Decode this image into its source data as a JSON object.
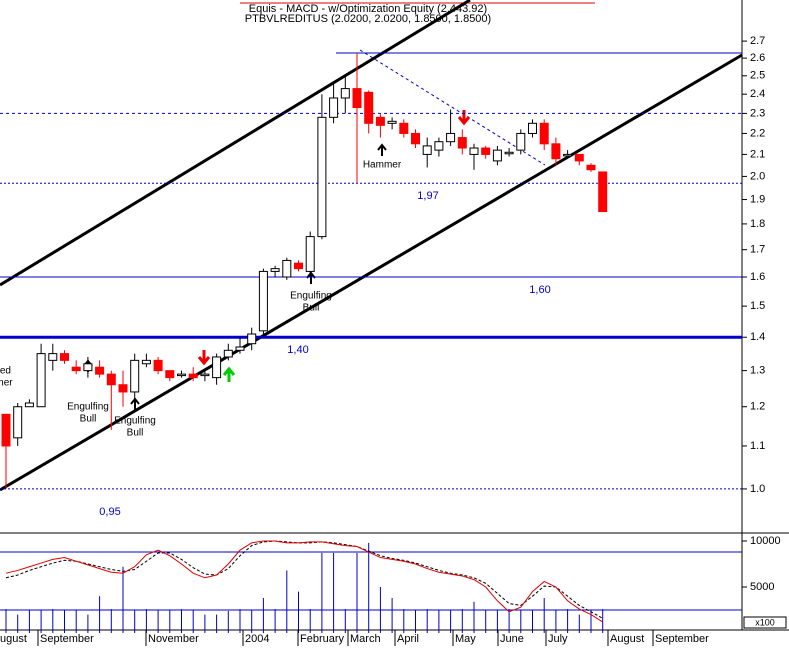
{
  "chart_data": {
    "type": "candlestick",
    "title": "Equis - MACD - w/Optimization Equity (2,443.92)",
    "subtitle": "PTBVLREDITUS (2.0200, 2.0200, 1.8500, 1.8500)",
    "log_scale": true,
    "color_up": "#ffffff",
    "color_down": "#ff0000",
    "ylim": [
      0.917,
      2.88
    ],
    "yticks": [
      {
        "value": 1.0,
        "label": "1.0"
      },
      1.1,
      1.2,
      1.3,
      1.4,
      1.5,
      1.6,
      1.7,
      1.8,
      1.9,
      {
        "value": 2.0,
        "label": "2.0"
      },
      2.1,
      2.2,
      2.3,
      2.4,
      2.5,
      2.6,
      2.7
    ],
    "open": [
      1.18,
      1.12,
      1.2,
      1.2,
      1.33,
      1.35,
      1.31,
      1.3,
      1.31,
      1.29,
      1.26,
      1.24,
      1.32,
      1.33,
      1.3,
      1.29,
      1.29,
      1.29,
      1.28,
      1.34,
      1.36,
      1.38,
      1.42,
      1.62,
      1.6,
      1.65,
      1.62,
      1.75,
      2.28,
      2.38,
      2.43,
      2.41,
      2.28,
      2.25,
      2.25,
      2.2,
      2.1,
      2.12,
      2.16,
      2.18,
      2.1,
      2.13,
      2.07,
      2.11,
      2.12,
      2.2,
      2.25,
      2.15,
      2.1,
      2.1,
      2.05,
      2.02
    ],
    "high": [
      1.18,
      1.21,
      1.22,
      1.38,
      1.38,
      1.36,
      1.33,
      1.34,
      1.33,
      1.3,
      1.3,
      1.35,
      1.35,
      1.34,
      1.3,
      1.3,
      1.31,
      1.3,
      1.35,
      1.38,
      1.4,
      1.43,
      1.63,
      1.64,
      1.67,
      1.66,
      1.77,
      2.4,
      2.47,
      2.5,
      2.63,
      2.42,
      2.3,
      2.28,
      2.27,
      2.22,
      2.18,
      2.18,
      2.32,
      2.22,
      2.15,
      2.14,
      2.14,
      2.13,
      2.22,
      2.27,
      2.27,
      2.18,
      2.12,
      2.1,
      2.06,
      2.02
    ],
    "low": [
      1.0,
      1.1,
      1.2,
      1.2,
      1.3,
      1.32,
      1.29,
      1.28,
      1.28,
      1.14,
      1.2,
      1.2,
      1.31,
      1.29,
      1.27,
      1.28,
      1.27,
      1.27,
      1.26,
      1.33,
      1.35,
      1.36,
      1.4,
      1.6,
      1.59,
      1.62,
      1.6,
      1.74,
      2.25,
      2.3,
      1.97,
      2.2,
      2.18,
      2.22,
      2.18,
      2.13,
      2.04,
      2.09,
      2.14,
      2.1,
      2.03,
      2.08,
      2.05,
      2.09,
      2.1,
      2.18,
      2.12,
      2.05,
      2.08,
      2.05,
      2.02,
      1.85
    ],
    "close": [
      1.1,
      1.2,
      1.21,
      1.35,
      1.35,
      1.33,
      1.3,
      1.32,
      1.29,
      1.26,
      1.24,
      1.33,
      1.33,
      1.3,
      1.28,
      1.29,
      1.28,
      1.29,
      1.34,
      1.36,
      1.37,
      1.41,
      1.62,
      1.63,
      1.66,
      1.63,
      1.75,
      2.28,
      2.38,
      2.43,
      2.33,
      2.25,
      2.24,
      2.26,
      2.2,
      2.15,
      2.14,
      2.16,
      2.2,
      2.13,
      2.13,
      2.1,
      2.12,
      2.11,
      2.2,
      2.25,
      2.15,
      2.08,
      2.1,
      2.07,
      2.03,
      1.85
    ],
    "levels": [
      {
        "value": 2.63,
        "style": "solid"
      },
      {
        "value": 2.3,
        "style": "dashed"
      },
      {
        "value": 1.97,
        "label": "1,97",
        "style": "dotted"
      },
      {
        "value": 1.6,
        "label": "1,60",
        "style": "solid"
      },
      {
        "value": 1.4,
        "label": "1,40",
        "style": "thick"
      },
      {
        "value": 1.0,
        "style": "dotted"
      },
      {
        "value": 0.95,
        "label": "0,95",
        "style": "none"
      }
    ],
    "annotations": [
      "Hammer",
      "Engulfing",
      "Bull",
      "Engulfing",
      "Bull",
      "Engulfing",
      "Bull",
      "ted",
      "mer"
    ],
    "months": [
      "ugust",
      "September",
      "November",
      "2004",
      "February",
      "March",
      "April",
      "May",
      "June",
      "July",
      "August",
      "September"
    ],
    "indicator": {
      "ylim": [
        0,
        10650
      ],
      "yticks": [
        5000,
        10000
      ],
      "unit_label": "x100",
      "macd": {
        "color": "#e00000",
        "values": [
          6500,
          6800,
          7200,
          7600,
          8000,
          8200,
          7800,
          7400,
          7000,
          6600,
          6500,
          7200,
          8500,
          9000,
          8400,
          7500,
          6500,
          6000,
          6300,
          7500,
          9000,
          9800,
          10000,
          10000,
          9800,
          9800,
          9900,
          9900,
          9700,
          9500,
          9400,
          8800,
          8200,
          8000,
          7800,
          7500,
          7000,
          6600,
          6400,
          6200,
          5800,
          5000,
          3500,
          2300,
          2800,
          4500,
          5600,
          5000,
          3500,
          2600,
          2000,
          1200
        ]
      },
      "signal": {
        "color": "#000000",
        "values": [
          6000,
          6300,
          6800,
          7200,
          7600,
          7900,
          7800,
          7500,
          7200,
          6900,
          6700,
          6900,
          7800,
          8700,
          8700,
          8000,
          7100,
          6400,
          6300,
          7000,
          8400,
          9500,
          9900,
          10000,
          9900,
          9800,
          9800,
          9900,
          9800,
          9600,
          9400,
          8900,
          8400,
          8100,
          7900,
          7600,
          7200,
          6800,
          6500,
          6300,
          6000,
          5400,
          4300,
          3200,
          3000,
          4000,
          5100,
          5000,
          4000,
          3000,
          2300,
          1600
        ]
      },
      "volume": {
        "color": "#0000cc",
        "values": [
          2600,
          2000,
          2500,
          2500,
          2600,
          2500,
          2500,
          2000,
          4000,
          2600,
          7200,
          2500,
          2600,
          2500,
          2500,
          2600,
          2500,
          2000,
          2000,
          2400,
          2600,
          2500,
          3800,
          2600,
          6800,
          4500,
          2600,
          8700,
          8700,
          2600,
          8700,
          9800,
          5000,
          3800,
          2600,
          2500,
          2600,
          2500,
          2500,
          2600,
          3400,
          2500,
          2500,
          2600,
          2500,
          2500,
          3800,
          2500,
          2600,
          2000,
          2500,
          2600
        ]
      }
    }
  }
}
